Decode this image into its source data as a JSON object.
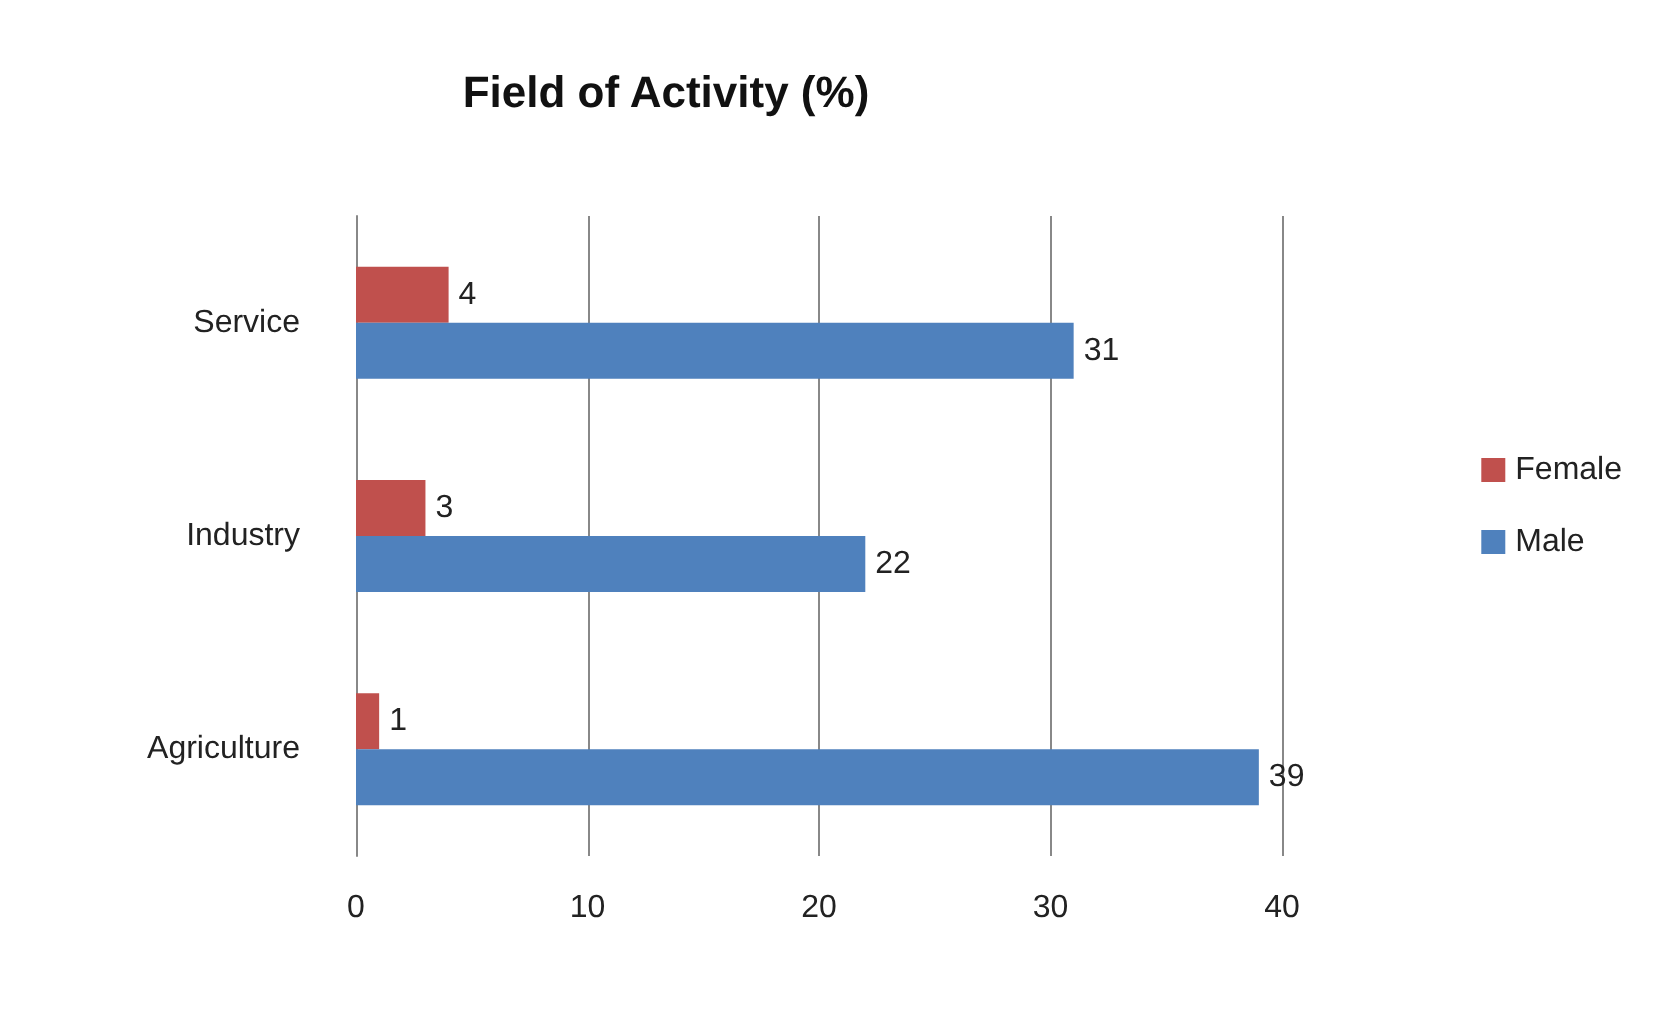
{
  "chart_data": {
    "type": "bar",
    "title": "Field of Activity (%)",
    "orientation": "horizontal",
    "categories": [
      "Service",
      "Industry",
      "Agriculture"
    ],
    "series": [
      {
        "name": "Female",
        "color": "#c0504d",
        "values": [
          4,
          3,
          1
        ]
      },
      {
        "name": "Male",
        "color": "#4f81bd",
        "values": [
          31,
          22,
          39
        ]
      }
    ],
    "xlim": [
      0,
      40
    ],
    "xticks": [
      0,
      10,
      20,
      30,
      40
    ],
    "grid": "x",
    "legend": "right",
    "data_labels": true
  }
}
